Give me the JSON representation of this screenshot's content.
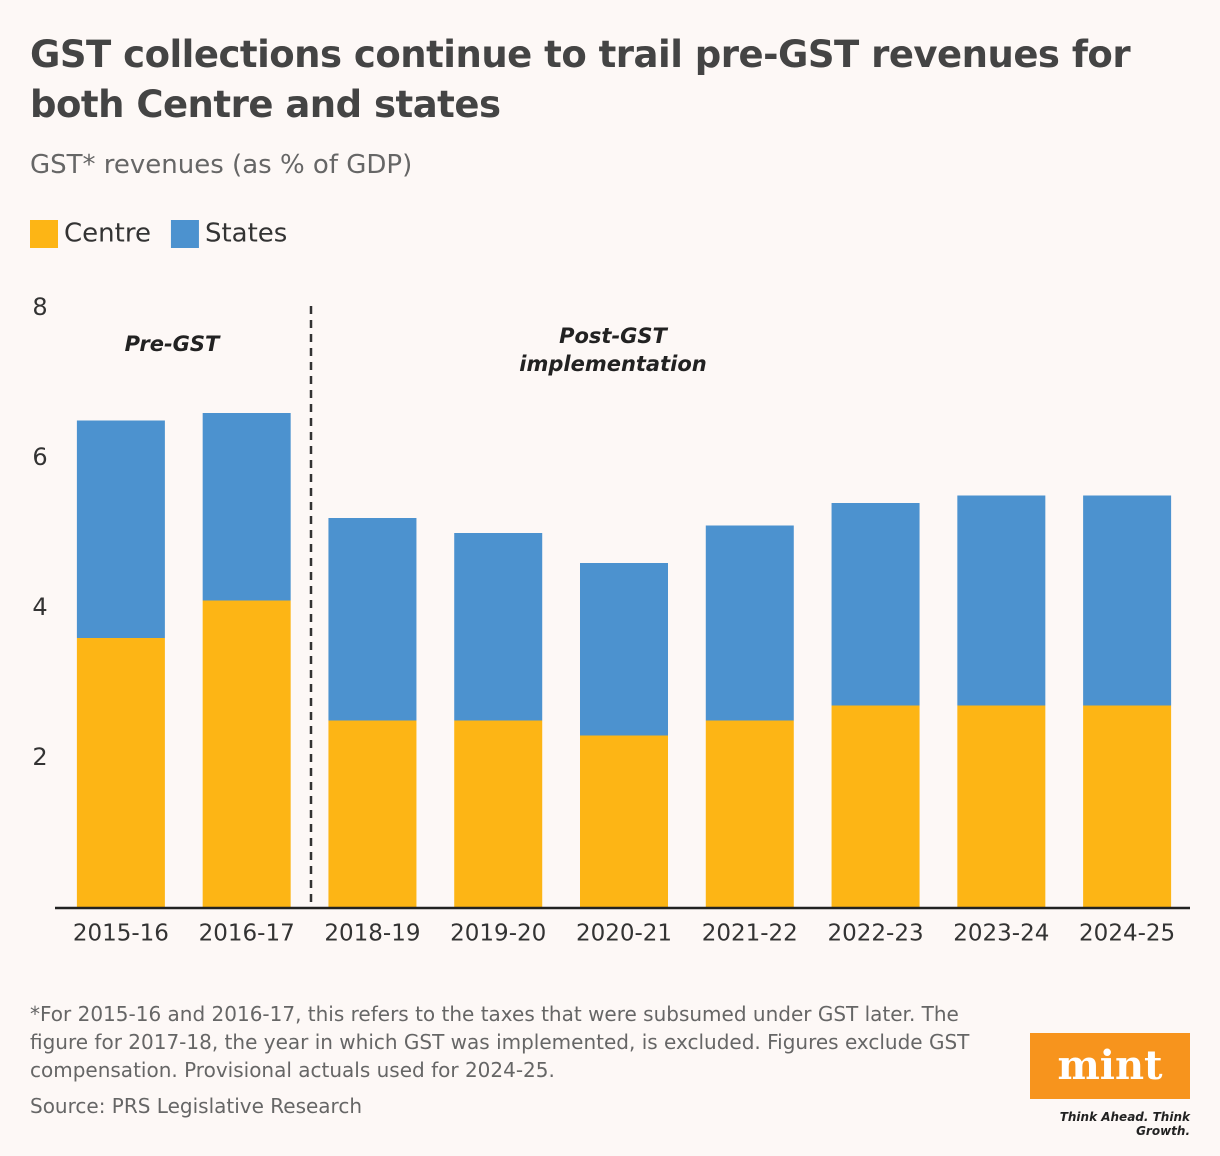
{
  "chart_data": {
    "type": "bar",
    "stacked": true,
    "title": "GST collections continue to trail pre-GST revenues for both Centre and states",
    "subtitle": "GST* revenues (as % of GDP)",
    "categories": [
      "2015-16",
      "2016-17",
      "2018-19",
      "2019-20",
      "2020-21",
      "2021-22",
      "2022-23",
      "2023-24",
      "2024-25"
    ],
    "series": [
      {
        "name": "Centre",
        "color": "#fdb515",
        "values": [
          3.6,
          4.1,
          2.5,
          2.5,
          2.3,
          2.5,
          2.7,
          2.7,
          2.7
        ]
      },
      {
        "name": "States",
        "color": "#4c92cf",
        "values": [
          2.9,
          2.5,
          2.7,
          2.5,
          2.3,
          2.6,
          2.7,
          2.8,
          2.8
        ]
      }
    ],
    "ylim": [
      0,
      8
    ],
    "yticks": [
      2,
      4,
      6,
      8
    ],
    "grid": false,
    "legend": "top-left",
    "annotations": [
      "Pre-GST",
      "Post-GST implementation"
    ],
    "note": "*For 2015-16 and 2016-17, this refers to the taxes that were subsumed under GST later. The figure for 2017-18, the year in which GST was implemented, is excluded. Figures exclude GST compensation. Provisional actuals used for 2024-25.",
    "source": "Source: PRS Legislative Research"
  },
  "branding": {
    "logo": "mint",
    "tagline": "Think Ahead. Think Growth."
  }
}
